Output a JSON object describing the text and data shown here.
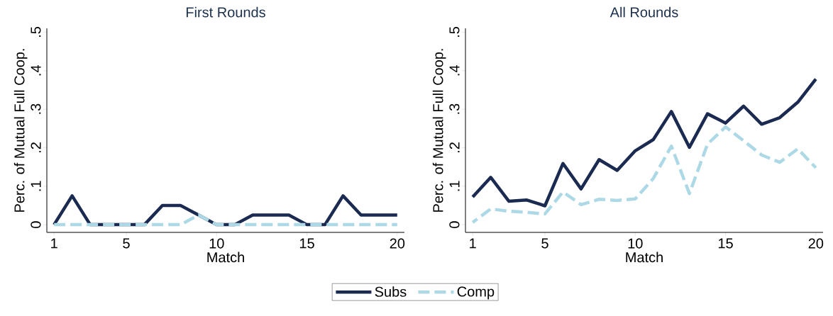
{
  "chart_data": [
    {
      "type": "line",
      "title": "First Rounds",
      "xlabel": "Match",
      "ylabel": "Perc. of Mutual Full Coop.",
      "x": [
        1,
        2,
        3,
        4,
        5,
        6,
        7,
        8,
        9,
        10,
        11,
        12,
        13,
        14,
        15,
        16,
        17,
        18,
        19,
        20
      ],
      "series": [
        {
          "name": "Subs",
          "color": "#1a2a50",
          "line_style": "solid",
          "values": [
            0,
            0.075,
            0,
            0,
            0,
            0,
            0.05,
            0.05,
            0.025,
            0,
            0,
            0.025,
            0.025,
            0.025,
            0,
            0,
            0.075,
            0.025,
            0.025,
            0.025
          ]
        },
        {
          "name": "Comp",
          "color": "#add8e6",
          "line_style": "dashed",
          "values": [
            0,
            0,
            0,
            0,
            0,
            0,
            0,
            0,
            0.025,
            0,
            0,
            0,
            0,
            0,
            0,
            0,
            0,
            0,
            0,
            0
          ]
        }
      ],
      "xlim": [
        0.6,
        20.4
      ],
      "ylim": [
        -0.02,
        0.51
      ],
      "xticks": [
        1,
        5,
        10,
        15,
        20
      ],
      "yticks": [
        0,
        {
          "value": 0.1,
          "label": ".1"
        },
        {
          "value": 0.2,
          "label": ".2"
        },
        {
          "value": 0.3,
          "label": ".3"
        },
        {
          "value": 0.4,
          "label": ".4"
        },
        {
          "value": 0.5,
          "label": ".5"
        }
      ],
      "legend": "bottom"
    },
    {
      "type": "line",
      "title": "All Rounds",
      "xlabel": "Match",
      "ylabel": "Perc. of Mutual Full Coop.",
      "x": [
        1,
        2,
        3,
        4,
        5,
        6,
        7,
        8,
        9,
        10,
        11,
        12,
        13,
        14,
        15,
        16,
        17,
        18,
        19,
        20
      ],
      "series": [
        {
          "color": "#1a2a50",
          "line_style": "solid",
          "values": [
            0.072,
            0.123,
            0.061,
            0.064,
            0.049,
            0.159,
            0.093,
            0.169,
            0.141,
            0.192,
            0.221,
            0.294,
            0.201,
            0.288,
            0.264,
            0.308,
            0.261,
            0.278,
            0.318,
            0.378
          ]
        },
        {
          "color": "#add8e6",
          "line_style": "dashed",
          "values": [
            0.006,
            0.041,
            0.035,
            0.032,
            0.028,
            0.085,
            0.052,
            0.066,
            0.063,
            0.067,
            0.12,
            0.204,
            0.081,
            0.209,
            0.254,
            0.218,
            0.181,
            0.162,
            0.197,
            0.148
          ]
        }
      ],
      "xlim": [
        0.6,
        20.4
      ],
      "ylim": [
        -0.02,
        0.51
      ],
      "xticks": [
        1,
        5,
        10,
        15,
        20
      ],
      "yticks": [
        0,
        {
          "value": 0.1,
          "label": ".1"
        },
        {
          "value": 0.2,
          "label": ".2"
        },
        {
          "value": 0.3,
          "label": ".3"
        },
        {
          "value": 0.4,
          "label": ".4"
        },
        {
          "value": 0.5,
          "label": ".5"
        }
      ]
    }
  ]
}
